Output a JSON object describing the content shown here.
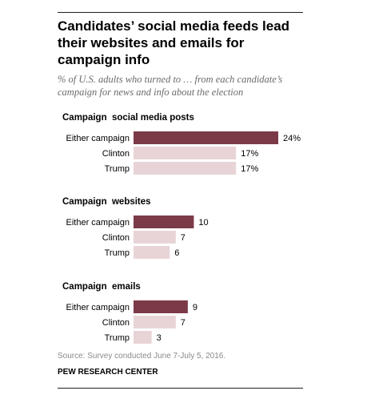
{
  "title": "Candidates’ social media feeds lead their websites and emails for campaign info",
  "subtitle": "% of U.S. adults who turned to … from each candidate’s campaign for news and info about the election",
  "source": "Source: Survey conducted June 7-July 5, 2016.",
  "credit": "PEW RESEARCH CENTER",
  "colors": {
    "primary_bar": "#7b3a48",
    "secondary_bar": "#e8d4d7",
    "text": "#000000",
    "muted_text": "#8a8a8a"
  },
  "chart_data": [
    {
      "type": "bar",
      "orientation": "horizontal",
      "title": "Campaign  social media posts",
      "categories": [
        "Either campaign",
        "Clinton",
        "Trump"
      ],
      "values": [
        24,
        17,
        17
      ],
      "value_labels": [
        "24%",
        "17%",
        "17%"
      ],
      "xlim": [
        0,
        24
      ]
    },
    {
      "type": "bar",
      "orientation": "horizontal",
      "title": "Campaign  websites",
      "categories": [
        "Either campaign",
        "Clinton",
        "Trump"
      ],
      "values": [
        10,
        7,
        6
      ],
      "value_labels": [
        "10",
        "7",
        "6"
      ],
      "xlim": [
        0,
        24
      ]
    },
    {
      "type": "bar",
      "orientation": "horizontal",
      "title": "Campaign  emails",
      "categories": [
        "Either campaign",
        "Clinton",
        "Trump"
      ],
      "values": [
        9,
        7,
        3
      ],
      "value_labels": [
        "9",
        "7",
        "3"
      ],
      "xlim": [
        0,
        24
      ]
    }
  ]
}
